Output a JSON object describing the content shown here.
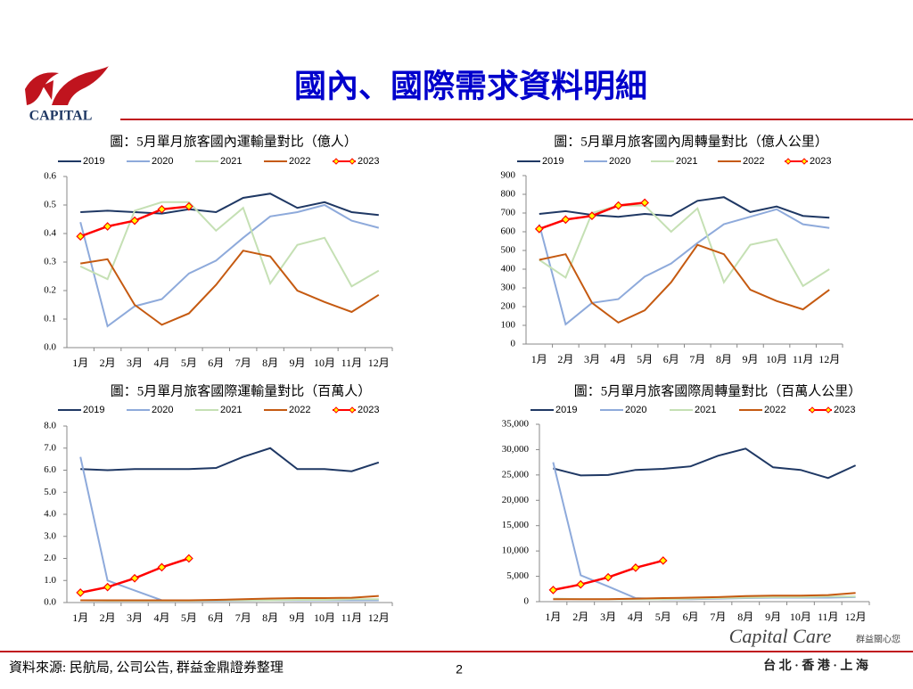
{
  "header": {
    "title": "國內、國際需求資料明細",
    "logo": "CAPITAL"
  },
  "footer": {
    "source": "資料來源: 民航局, 公司公告, 群益金鼎證券整理",
    "page": "2",
    "brand": "Capital Care",
    "brand_sub": "群益關心您",
    "locations": "台 北 · 香 港 · 上 海"
  },
  "chart_data": [
    {
      "type": "line",
      "title": "圖：5月單月旅客國內運輸量對比（億人）",
      "categories": [
        "1月",
        "2月",
        "3月",
        "4月",
        "5月",
        "6月",
        "7月",
        "8月",
        "9月",
        "10月",
        "11月",
        "12月"
      ],
      "ylim": [
        0,
        0.6
      ],
      "yticks": [
        {
          "value": 0,
          "label": "0.0"
        },
        0.1,
        0.2,
        0.3,
        0.4,
        0.5,
        0.6
      ],
      "series": [
        {
          "name": "2019",
          "color": "#1f3864",
          "values": [
            0.475,
            0.48,
            0.475,
            0.47,
            0.485,
            0.475,
            0.525,
            0.54,
            0.49,
            0.51,
            0.475,
            0.465
          ]
        },
        {
          "name": "2020",
          "color": "#8eaadb",
          "values": [
            0.44,
            0.075,
            0.145,
            0.17,
            0.26,
            0.305,
            0.385,
            0.46,
            0.475,
            0.5,
            0.445,
            0.42
          ]
        },
        {
          "name": "2021",
          "color": "#c5e0b4",
          "values": [
            0.285,
            0.24,
            0.48,
            0.51,
            0.51,
            0.41,
            0.49,
            0.225,
            0.36,
            0.385,
            0.215,
            0.27
          ]
        },
        {
          "name": "2022",
          "color": "#c55a11",
          "values": [
            0.295,
            0.31,
            0.15,
            0.08,
            0.12,
            0.22,
            0.34,
            0.32,
            0.2,
            0.16,
            0.125,
            0.185
          ]
        },
        {
          "name": "2023",
          "color": "#ff0000",
          "marker": "diamond",
          "values": [
            0.39,
            0.425,
            0.445,
            0.485,
            0.495,
            null,
            null,
            null,
            null,
            null,
            null,
            null
          ]
        }
      ]
    },
    {
      "type": "line",
      "title": "圖：5月單月旅客國內周轉量對比（億人公里）",
      "categories": [
        "1月",
        "2月",
        "3月",
        "4月",
        "5月",
        "6月",
        "7月",
        "8月",
        "9月",
        "10月",
        "11月",
        "12月"
      ],
      "ylim": [
        0,
        900
      ],
      "yticks": [
        0,
        100,
        200,
        300,
        400,
        500,
        600,
        700,
        800,
        900
      ],
      "series": [
        {
          "name": "2019",
          "color": "#1f3864",
          "values": [
            695,
            710,
            690,
            680,
            695,
            685,
            765,
            785,
            705,
            735,
            685,
            675
          ]
        },
        {
          "name": "2020",
          "color": "#8eaadb",
          "values": [
            640,
            105,
            220,
            240,
            360,
            430,
            540,
            640,
            680,
            720,
            640,
            620
          ]
        },
        {
          "name": "2021",
          "color": "#c5e0b4",
          "values": [
            450,
            355,
            700,
            740,
            740,
            600,
            725,
            330,
            530,
            560,
            310,
            400
          ]
        },
        {
          "name": "2022",
          "color": "#c55a11",
          "values": [
            450,
            480,
            220,
            115,
            180,
            330,
            530,
            480,
            290,
            230,
            185,
            290
          ]
        },
        {
          "name": "2023",
          "color": "#ff0000",
          "marker": "diamond",
          "values": [
            615,
            665,
            685,
            740,
            755,
            null,
            null,
            null,
            null,
            null,
            null,
            null
          ]
        }
      ]
    },
    {
      "type": "line",
      "title": "圖：5月單月旅客國際運輸量對比（百萬人）",
      "categories": [
        "1月",
        "2月",
        "3月",
        "4月",
        "5月",
        "6月",
        "7月",
        "8月",
        "9月",
        "10月",
        "11月",
        "12月"
      ],
      "ylim": [
        0,
        8
      ],
      "yticks": [
        {
          "value": 0,
          "label": "0.0"
        },
        {
          "value": 1,
          "label": "1.0"
        },
        {
          "value": 2,
          "label": "2.0"
        },
        {
          "value": 3,
          "label": "3.0"
        },
        {
          "value": 4,
          "label": "4.0"
        },
        {
          "value": 5,
          "label": "5.0"
        },
        {
          "value": 6,
          "label": "6.0"
        },
        {
          "value": 7,
          "label": "7.0"
        },
        {
          "value": 8,
          "label": "8.0"
        }
      ],
      "series": [
        {
          "name": "2019",
          "color": "#1f3864",
          "values": [
            6.05,
            6.0,
            6.05,
            6.05,
            6.05,
            6.1,
            6.6,
            7.0,
            6.05,
            6.05,
            5.95,
            6.35
          ]
        },
        {
          "name": "2020",
          "color": "#8eaadb",
          "values": [
            6.6,
            1.0,
            0.55,
            0.1,
            0.08,
            0.08,
            0.09,
            0.1,
            0.1,
            0.1,
            0.1,
            0.1
          ]
        },
        {
          "name": "2021",
          "color": "#c5e0b4",
          "values": [
            0.1,
            0.08,
            0.08,
            0.08,
            0.08,
            0.1,
            0.1,
            0.1,
            0.12,
            0.12,
            0.15,
            0.15
          ]
        },
        {
          "name": "2022",
          "color": "#c55a11",
          "values": [
            0.1,
            0.1,
            0.1,
            0.1,
            0.1,
            0.12,
            0.15,
            0.18,
            0.2,
            0.2,
            0.22,
            0.3
          ]
        },
        {
          "name": "2023",
          "color": "#ff0000",
          "marker": "diamond",
          "values": [
            0.45,
            0.7,
            1.1,
            1.6,
            2.0,
            null,
            null,
            null,
            null,
            null,
            null,
            null
          ]
        }
      ]
    },
    {
      "type": "line",
      "title": "圖：5月單月旅客國際周轉量對比（百萬人公里）",
      "categories": [
        "1月",
        "2月",
        "3月",
        "4月",
        "5月",
        "6月",
        "7月",
        "8月",
        "9月",
        "10月",
        "11月",
        "12月"
      ],
      "ylim": [
        0,
        35000
      ],
      "yticks": [
        0,
        {
          "value": 5000,
          "label": "5,000"
        },
        {
          "value": 10000,
          "label": "10,000"
        },
        {
          "value": 15000,
          "label": "15,000"
        },
        {
          "value": 20000,
          "label": "20,000"
        },
        {
          "value": 25000,
          "label": "25,000"
        },
        {
          "value": 30000,
          "label": "30,000"
        },
        {
          "value": 35000,
          "label": "35,000"
        }
      ],
      "series": [
        {
          "name": "2019",
          "color": "#1f3864",
          "values": [
            26300,
            24900,
            25000,
            26000,
            26200,
            26700,
            28800,
            30200,
            26500,
            26000,
            24400,
            26900
          ]
        },
        {
          "name": "2020",
          "color": "#8eaadb",
          "values": [
            27500,
            5200,
            3000,
            700,
            500,
            500,
            600,
            700,
            800,
            800,
            800,
            900
          ]
        },
        {
          "name": "2021",
          "color": "#c5e0b4",
          "values": [
            600,
            500,
            500,
            500,
            500,
            600,
            700,
            800,
            900,
            900,
            1000,
            1000
          ]
        },
        {
          "name": "2022",
          "color": "#c55a11",
          "values": [
            500,
            500,
            500,
            600,
            700,
            800,
            900,
            1100,
            1200,
            1200,
            1300,
            1700
          ]
        },
        {
          "name": "2023",
          "color": "#ff0000",
          "marker": "diamond",
          "values": [
            2300,
            3400,
            4800,
            6700,
            8100,
            null,
            null,
            null,
            null,
            null,
            null,
            null
          ]
        }
      ]
    }
  ]
}
